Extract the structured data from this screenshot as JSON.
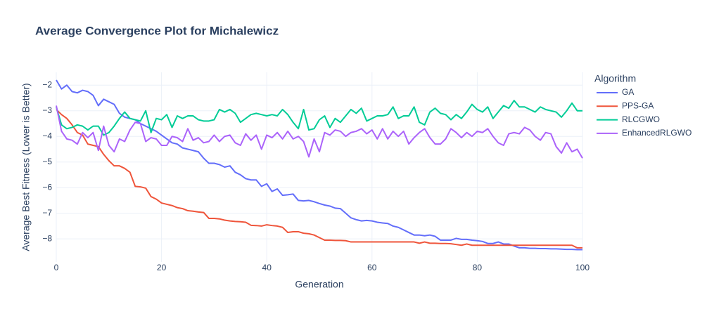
{
  "chart_data": {
    "type": "line",
    "title": "Average Convergence Plot for Michalewicz",
    "x_label": "Generation",
    "y_label": "Average Best Fitness (Lower is Better)",
    "legend_title": "Algorithm",
    "legend_position": "right",
    "grid": true,
    "xlim": [
      0,
      100
    ],
    "ylim": [
      -8.9,
      -1.5
    ],
    "xticks": [
      0,
      20,
      40,
      60,
      80,
      100
    ],
    "yticks": [
      {
        "value": -8,
        "label": "−8"
      },
      {
        "value": -7,
        "label": "−7"
      },
      {
        "value": -6,
        "label": "−6"
      },
      {
        "value": -5,
        "label": "−5"
      },
      {
        "value": -4,
        "label": "−4"
      },
      {
        "value": -3,
        "label": "−3"
      },
      {
        "value": -2,
        "label": "−2"
      }
    ],
    "x": [
      0,
      1,
      2,
      3,
      4,
      5,
      6,
      7,
      8,
      9,
      10,
      11,
      12,
      13,
      14,
      15,
      16,
      17,
      18,
      19,
      20,
      21,
      22,
      23,
      24,
      25,
      26,
      27,
      28,
      29,
      30,
      31,
      32,
      33,
      34,
      35,
      36,
      37,
      38,
      39,
      40,
      41,
      42,
      43,
      44,
      45,
      46,
      47,
      48,
      49,
      50,
      51,
      52,
      53,
      54,
      55,
      56,
      57,
      58,
      59,
      60,
      61,
      62,
      63,
      64,
      65,
      66,
      67,
      68,
      69,
      70,
      71,
      72,
      73,
      74,
      75,
      76,
      77,
      78,
      79,
      80,
      81,
      82,
      83,
      84,
      85,
      86,
      87,
      88,
      89,
      90,
      91,
      92,
      93,
      94,
      95,
      96,
      97,
      98,
      99,
      100
    ],
    "series": [
      {
        "name": "GA",
        "color": "#636efa",
        "values": [
          -1.8,
          -2.15,
          -2.0,
          -2.25,
          -2.3,
          -2.2,
          -2.25,
          -2.4,
          -2.8,
          -2.55,
          -2.65,
          -2.75,
          -3.1,
          -3.25,
          -3.3,
          -3.35,
          -3.5,
          -3.6,
          -3.7,
          -3.8,
          -3.95,
          -4.1,
          -4.25,
          -4.3,
          -4.45,
          -4.5,
          -4.55,
          -4.6,
          -4.85,
          -5.05,
          -5.05,
          -5.1,
          -5.2,
          -5.15,
          -5.4,
          -5.5,
          -5.65,
          -5.7,
          -5.7,
          -5.95,
          -5.85,
          -6.15,
          -6.05,
          -6.3,
          -6.28,
          -6.25,
          -6.5,
          -6.52,
          -6.5,
          -6.55,
          -6.62,
          -6.68,
          -6.72,
          -6.8,
          -6.82,
          -7.0,
          -7.18,
          -7.25,
          -7.3,
          -7.28,
          -7.3,
          -7.35,
          -7.38,
          -7.4,
          -7.5,
          -7.55,
          -7.65,
          -7.75,
          -7.85,
          -7.85,
          -7.88,
          -7.85,
          -7.9,
          -8.05,
          -8.05,
          -8.05,
          -7.98,
          -8.02,
          -8.02,
          -8.05,
          -8.07,
          -8.1,
          -8.18,
          -8.18,
          -8.12,
          -8.2,
          -8.2,
          -8.28,
          -8.35,
          -8.35,
          -8.37,
          -8.37,
          -8.38,
          -8.38,
          -8.39,
          -8.39,
          -8.4,
          -8.41,
          -8.41,
          -8.42,
          -8.42
        ]
      },
      {
        "name": "PPS-GA",
        "color": "#ef553b",
        "values": [
          -2.95,
          -3.15,
          -3.3,
          -3.55,
          -3.85,
          -3.95,
          -4.3,
          -4.35,
          -4.4,
          -4.7,
          -4.95,
          -5.15,
          -5.15,
          -5.25,
          -5.4,
          -5.95,
          -5.97,
          -6.02,
          -6.35,
          -6.45,
          -6.6,
          -6.65,
          -6.7,
          -6.78,
          -6.82,
          -6.9,
          -6.92,
          -6.95,
          -6.97,
          -7.2,
          -7.2,
          -7.22,
          -7.27,
          -7.3,
          -7.32,
          -7.33,
          -7.35,
          -7.47,
          -7.48,
          -7.5,
          -7.45,
          -7.48,
          -7.5,
          -7.55,
          -7.75,
          -7.72,
          -7.72,
          -7.78,
          -7.8,
          -7.85,
          -7.95,
          -8.05,
          -8.05,
          -8.06,
          -8.06,
          -8.07,
          -8.12,
          -8.12,
          -8.12,
          -8.12,
          -8.12,
          -8.12,
          -8.12,
          -8.12,
          -8.12,
          -8.12,
          -8.12,
          -8.12,
          -8.12,
          -8.17,
          -8.12,
          -8.17,
          -8.17,
          -8.18,
          -8.18,
          -8.19,
          -8.22,
          -8.25,
          -8.2,
          -8.25,
          -8.25,
          -8.25,
          -8.25,
          -8.25,
          -8.25,
          -8.25,
          -8.25,
          -8.25,
          -8.25,
          -8.25,
          -8.25,
          -8.25,
          -8.25,
          -8.25,
          -8.25,
          -8.25,
          -8.25,
          -8.25,
          -8.25,
          -8.35,
          -8.35
        ]
      },
      {
        "name": "RLCGWO",
        "color": "#00cc96",
        "values": [
          -2.85,
          -3.55,
          -3.7,
          -3.65,
          -3.55,
          -3.6,
          -3.75,
          -3.6,
          -3.6,
          -3.95,
          -3.85,
          -3.6,
          -3.3,
          -3.05,
          -3.3,
          -3.35,
          -3.4,
          -3.0,
          -3.85,
          -3.3,
          -3.35,
          -3.15,
          -3.65,
          -3.2,
          -3.3,
          -3.2,
          -3.2,
          -3.35,
          -3.4,
          -3.4,
          -3.35,
          -2.95,
          -3.05,
          -2.95,
          -3.1,
          -3.45,
          -3.3,
          -3.15,
          -3.1,
          -3.15,
          -3.2,
          -3.15,
          -3.2,
          -2.95,
          -3.15,
          -3.45,
          -3.7,
          -2.95,
          -3.75,
          -3.7,
          -3.35,
          -3.2,
          -3.65,
          -3.3,
          -3.45,
          -3.2,
          -2.95,
          -3.1,
          -2.9,
          -3.4,
          -3.3,
          -3.2,
          -3.2,
          -3.15,
          -2.85,
          -3.3,
          -3.2,
          -3.2,
          -2.85,
          -3.45,
          -3.55,
          -3.05,
          -2.9,
          -3.1,
          -3.15,
          -3.35,
          -3.15,
          -3.3,
          -3.05,
          -2.75,
          -2.95,
          -3.05,
          -2.85,
          -3.3,
          -3.05,
          -2.8,
          -2.9,
          -2.6,
          -2.85,
          -2.85,
          -2.95,
          -3.05,
          -2.85,
          -2.95,
          -3.0,
          -3.05,
          -3.25,
          -3.0,
          -2.7,
          -3.0,
          -3.0
        ]
      },
      {
        "name": "EnhancedRLGWO",
        "color": "#ab63fa",
        "values": [
          -2.8,
          -3.8,
          -4.1,
          -4.15,
          -4.3,
          -3.85,
          -4.05,
          -3.85,
          -4.55,
          -3.6,
          -4.35,
          -4.6,
          -4.1,
          -4.2,
          -3.75,
          -3.45,
          -3.5,
          -4.2,
          -4.05,
          -4.1,
          -4.35,
          -4.35,
          -4.0,
          -4.05,
          -4.2,
          -3.7,
          -4.15,
          -4.05,
          -4.25,
          -4.2,
          -3.95,
          -4.2,
          -4.0,
          -3.95,
          -4.25,
          -4.35,
          -3.9,
          -4.15,
          -3.95,
          -4.5,
          -3.95,
          -4.05,
          -3.85,
          -4.1,
          -3.8,
          -4.1,
          -4.0,
          -4.2,
          -4.8,
          -4.1,
          -4.6,
          -3.85,
          -3.95,
          -3.75,
          -3.8,
          -4.0,
          -3.85,
          -3.8,
          -3.7,
          -3.9,
          -3.75,
          -4.1,
          -3.7,
          -4.1,
          -3.8,
          -4.0,
          -3.8,
          -4.3,
          -4.05,
          -3.85,
          -3.7,
          -4.05,
          -4.3,
          -4.3,
          -4.1,
          -3.7,
          -3.85,
          -4.05,
          -3.85,
          -4.0,
          -3.8,
          -3.85,
          -3.7,
          -4.0,
          -4.25,
          -4.35,
          -3.9,
          -3.85,
          -3.9,
          -3.65,
          -3.75,
          -4.0,
          -4.15,
          -3.85,
          -3.9,
          -4.4,
          -4.65,
          -4.25,
          -4.6,
          -4.5,
          -4.85
        ]
      }
    ]
  }
}
